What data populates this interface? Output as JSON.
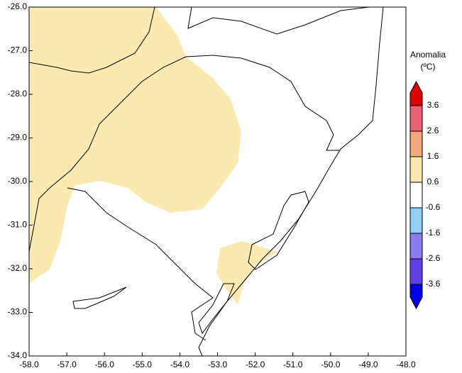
{
  "map": {
    "xlim": [
      -58,
      -48
    ],
    "ylim": [
      -34,
      -26
    ],
    "xticks": [
      {
        "value": -58,
        "label": "-58.0"
      },
      {
        "value": -57,
        "label": "-57.0"
      },
      {
        "value": -56,
        "label": "-56.0"
      },
      {
        "value": -55,
        "label": "-55.0"
      },
      {
        "value": -54,
        "label": "-54.0"
      },
      {
        "value": -53,
        "label": "-53.0"
      },
      {
        "value": -52,
        "label": "-52.0"
      },
      {
        "value": -51,
        "label": "-51.0"
      },
      {
        "value": -50,
        "label": "-50.0"
      },
      {
        "value": -49,
        "label": "-49.0"
      },
      {
        "value": -48,
        "label": "-48.0"
      }
    ],
    "yticks": [
      {
        "value": -26,
        "label": "-26.0"
      },
      {
        "value": -27,
        "label": "-27.0"
      },
      {
        "value": -28,
        "label": "-28.0"
      },
      {
        "value": -29,
        "label": "-29.0"
      },
      {
        "value": -30,
        "label": "-30.0"
      },
      {
        "value": -31,
        "label": "-31.0"
      },
      {
        "value": -32,
        "label": "-32.0"
      },
      {
        "value": -33,
        "label": "-33.0"
      },
      {
        "value": -34,
        "label": "-34.0"
      }
    ]
  },
  "legend": {
    "title": [
      "Anomalia",
      "(ºC)"
    ],
    "levels": [
      3.6,
      2.6,
      1.6,
      0.6,
      -0.6,
      -1.6,
      -2.6,
      -3.6
    ],
    "colors": [
      "#e00000",
      "#f06078",
      "#f5a87a",
      "#fbeab0",
      "#ffffff",
      "#90d0f8",
      "#8c7cf0",
      "#6040e8",
      "#0000e8"
    ]
  }
}
